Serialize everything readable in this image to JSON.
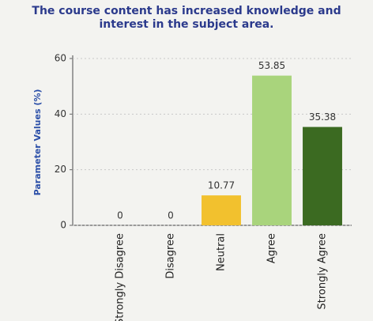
{
  "chart_data": {
    "type": "bar",
    "title": "The course content has increased knowledge and interest in the subject area.",
    "y_label": "Parameter Values (%)",
    "categories": [
      "Strongly Disagree",
      "Disagree",
      "Neutral",
      "Agree",
      "Strongly Agree"
    ],
    "values": [
      0,
      0,
      10.77,
      53.85,
      35.38
    ],
    "colors": [
      "#f2c12e",
      "#f2c12e",
      "#f2c12e",
      "#a9d47c",
      "#3b6a21"
    ],
    "ylim": [
      0,
      60
    ],
    "yticks": [
      0,
      20,
      40,
      60
    ],
    "grid": true
  }
}
